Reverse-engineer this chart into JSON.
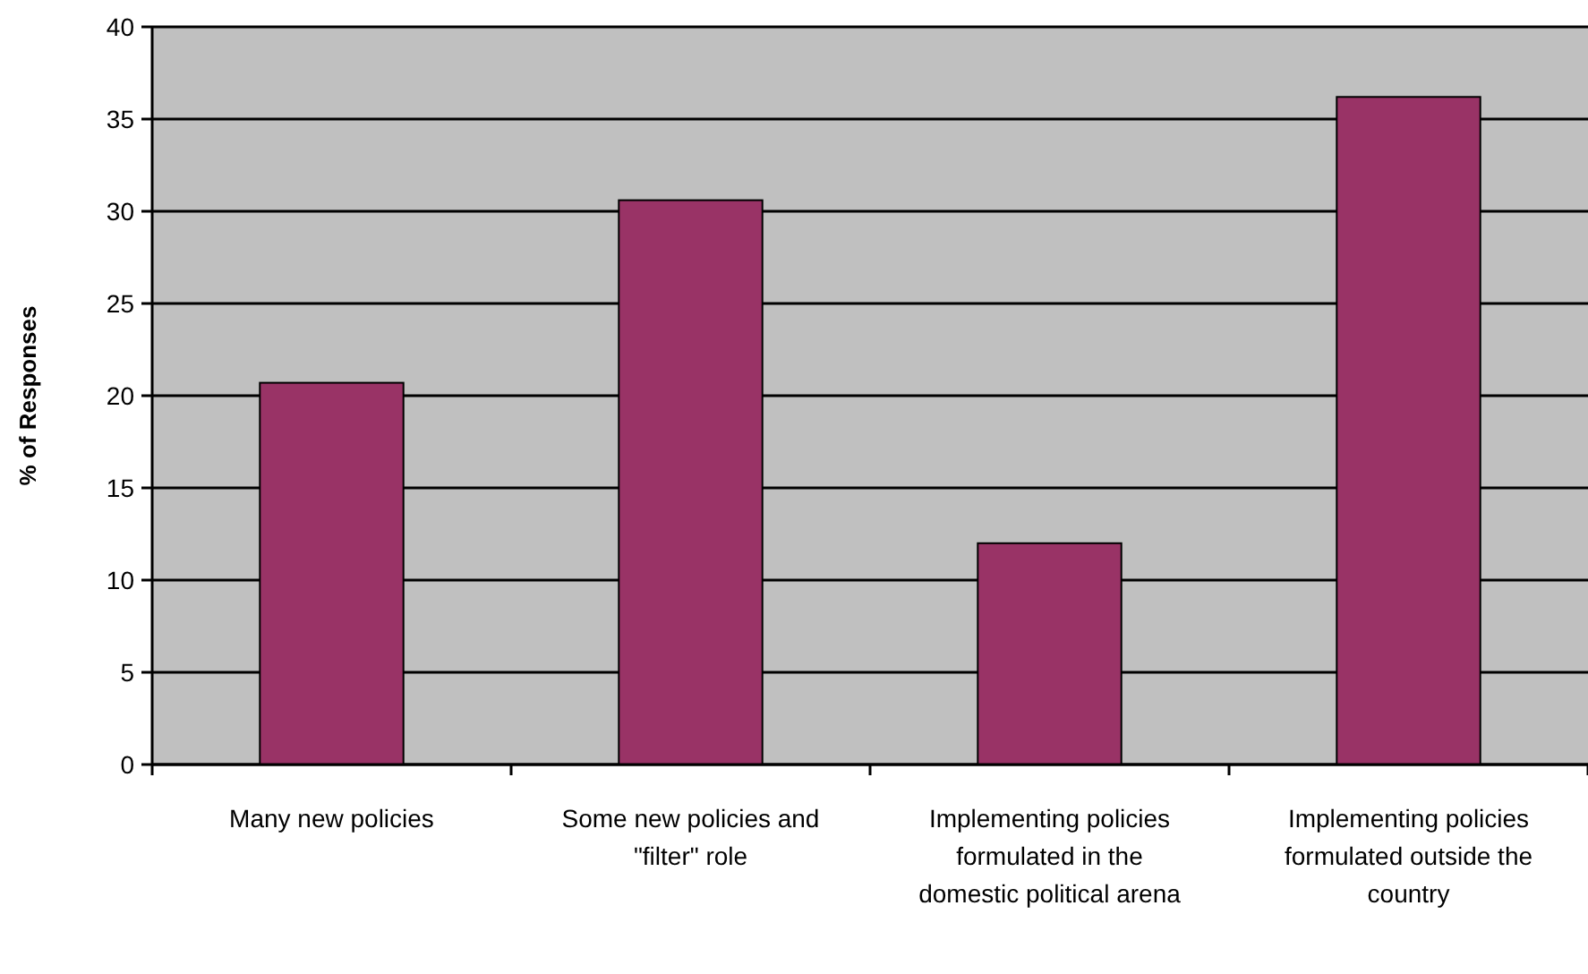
{
  "chart_data": {
    "type": "bar",
    "ylabel": "% of Responses",
    "categories": [
      "Many new policies",
      "Some new policies and \"filter\" role",
      "Implementing policies formulated in the domestic political arena",
      "Implementing policies formulated outside the country"
    ],
    "values": [
      20.7,
      30.6,
      12.0,
      36.2
    ],
    "color": "#993366",
    "ylim": [
      0,
      40
    ],
    "yticks": [
      0,
      5,
      10,
      15,
      20,
      25,
      30,
      35,
      40
    ],
    "grid": "y"
  }
}
